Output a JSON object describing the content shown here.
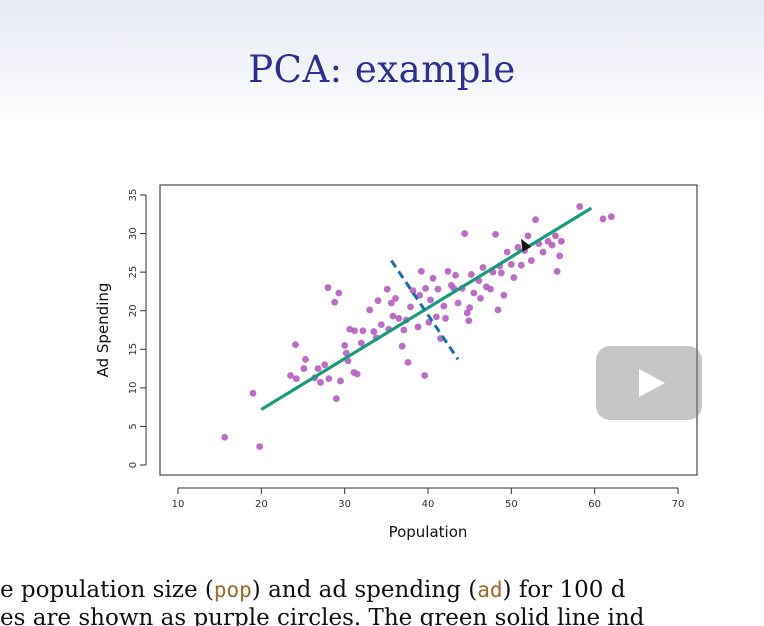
{
  "slide": {
    "title": "PCA: example",
    "caption_line1": {
      "prefix": "e population size (",
      "code1": "pop",
      "middle": ") and ad spending (",
      "code2": "ad",
      "suffix": ") for 100 d"
    },
    "caption_line2": "es are shown as purple circles. The green solid line ind"
  },
  "video": {
    "play_icon": "play-icon"
  },
  "colors": {
    "title": "#2c2f8e",
    "points": "#b25fbf",
    "first_pc": "#1a9a7a",
    "second_pc": "#1b6fa8",
    "code": "#a0652a"
  },
  "chart_data": {
    "type": "scatter",
    "xlabel": "Population",
    "ylabel": "Ad Spending",
    "xlim": [
      10,
      70
    ],
    "ylim": [
      0,
      35
    ],
    "xticks": [
      10,
      20,
      30,
      40,
      50,
      60,
      70
    ],
    "yticks": [
      0,
      5,
      10,
      15,
      20,
      25,
      30,
      35
    ],
    "series": [
      {
        "points": [
          [
            15.6,
            3.6
          ],
          [
            19.8,
            2.4
          ],
          [
            19.0,
            9.3
          ],
          [
            23.5,
            11.6
          ],
          [
            24.2,
            11.2
          ],
          [
            24.1,
            15.6
          ],
          [
            25.1,
            12.5
          ],
          [
            25.3,
            13.7
          ],
          [
            26.4,
            11.3
          ],
          [
            27.1,
            10.7
          ],
          [
            27.6,
            13.0
          ],
          [
            28.1,
            11.2
          ],
          [
            28.0,
            23.0
          ],
          [
            28.8,
            21.1
          ],
          [
            29.3,
            22.3
          ],
          [
            29.0,
            8.6
          ],
          [
            29.5,
            10.9
          ],
          [
            30.0,
            15.5
          ],
          [
            30.4,
            13.5
          ],
          [
            30.6,
            17.6
          ],
          [
            31.1,
            12.0
          ],
          [
            31.5,
            11.8
          ],
          [
            31.2,
            17.4
          ],
          [
            32.0,
            15.8
          ],
          [
            32.2,
            17.4
          ],
          [
            33.5,
            17.3
          ],
          [
            33.0,
            20.1
          ],
          [
            33.8,
            16.5
          ],
          [
            34.4,
            18.2
          ],
          [
            35.3,
            17.6
          ],
          [
            35.6,
            21.0
          ],
          [
            35.1,
            22.8
          ],
          [
            36.1,
            21.6
          ],
          [
            36.5,
            19.0
          ],
          [
            36.9,
            15.4
          ],
          [
            37.1,
            17.5
          ],
          [
            37.6,
            13.3
          ],
          [
            37.4,
            18.8
          ],
          [
            37.9,
            20.5
          ],
          [
            38.2,
            22.6
          ],
          [
            38.8,
            17.9
          ],
          [
            39.0,
            22.0
          ],
          [
            39.2,
            25.1
          ],
          [
            39.7,
            22.9
          ],
          [
            39.6,
            11.6
          ],
          [
            40.1,
            18.5
          ],
          [
            40.3,
            21.4
          ],
          [
            40.6,
            24.2
          ],
          [
            41.0,
            19.2
          ],
          [
            41.2,
            22.8
          ],
          [
            41.5,
            16.4
          ],
          [
            41.9,
            20.6
          ],
          [
            42.1,
            19.0
          ],
          [
            42.4,
            25.1
          ],
          [
            42.8,
            23.3
          ],
          [
            43.1,
            22.9
          ],
          [
            43.3,
            24.6
          ],
          [
            43.6,
            21.0
          ],
          [
            44.1,
            22.9
          ],
          [
            44.4,
            30.0
          ],
          [
            44.7,
            19.7
          ],
          [
            45.0,
            20.4
          ],
          [
            45.2,
            24.7
          ],
          [
            45.5,
            22.3
          ],
          [
            46.1,
            23.9
          ],
          [
            46.3,
            21.6
          ],
          [
            46.6,
            25.6
          ],
          [
            47.0,
            23.1
          ],
          [
            47.5,
            22.8
          ],
          [
            47.8,
            25.0
          ],
          [
            48.1,
            29.9
          ],
          [
            48.4,
            20.1
          ],
          [
            48.8,
            24.9
          ],
          [
            49.1,
            22.0
          ],
          [
            49.5,
            27.6
          ],
          [
            50.0,
            26.0
          ],
          [
            50.3,
            24.3
          ],
          [
            50.8,
            28.2
          ],
          [
            51.2,
            25.9
          ],
          [
            51.6,
            27.8
          ],
          [
            52.0,
            29.7
          ],
          [
            52.4,
            26.5
          ],
          [
            52.9,
            31.8
          ],
          [
            53.3,
            28.7
          ],
          [
            53.8,
            27.6
          ],
          [
            54.4,
            29.0
          ],
          [
            54.9,
            28.5
          ],
          [
            55.3,
            29.7
          ],
          [
            55.8,
            27.1
          ],
          [
            55.5,
            25.1
          ],
          [
            56.0,
            29.0
          ],
          [
            58.2,
            33.5
          ],
          [
            61.0,
            31.9
          ],
          [
            62.0,
            32.2
          ],
          [
            35.8,
            19.3
          ],
          [
            34.0,
            21.3
          ],
          [
            30.2,
            14.5
          ],
          [
            26.8,
            12.5
          ],
          [
            44.9,
            18.7
          ],
          [
            48.6,
            25.8
          ]
        ]
      }
    ],
    "lines": [
      {
        "name": "first-principal-component",
        "style": "solid",
        "from": [
          20.0,
          7.2
        ],
        "to": [
          59.6,
          33.3
        ]
      },
      {
        "name": "second-principal-component",
        "style": "dashed",
        "from": [
          35.6,
          26.5
        ],
        "to": [
          43.6,
          13.7
        ]
      }
    ],
    "grid": false
  }
}
